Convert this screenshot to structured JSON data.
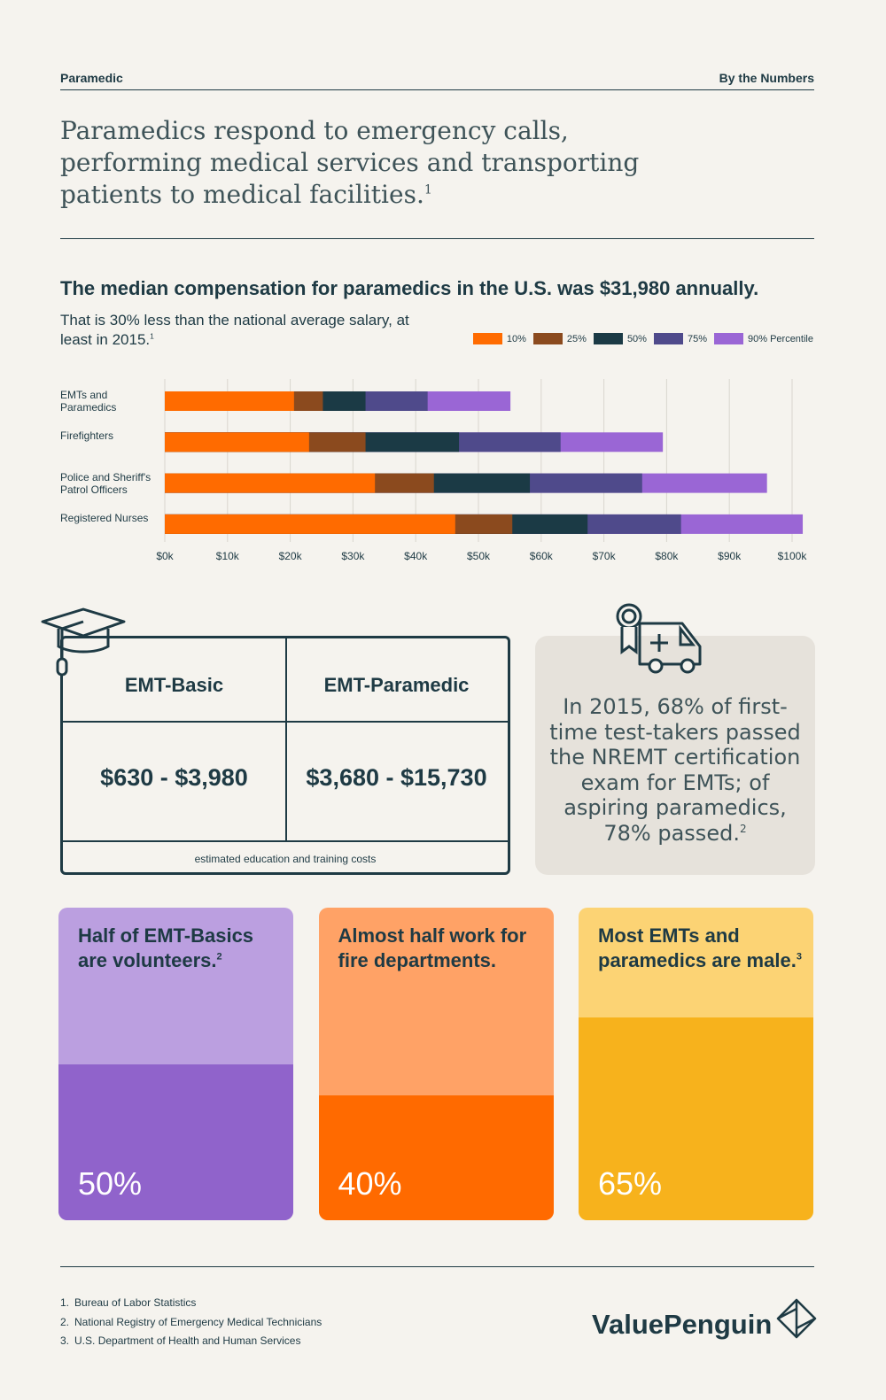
{
  "header": {
    "left": "Paramedic",
    "right": "By the Numbers"
  },
  "intro": {
    "text": "Paramedics respond to emergency calls, performing medical services and transporting patients to medical facilities.",
    "note": "1"
  },
  "chart_data": {
    "type": "bar",
    "orientation": "horizontal",
    "title": "The median compensation for paramedics in the U.S. was $31,980 annually.",
    "subtitle": "That is 30% less than the national average salary, at least in 2015.",
    "subtitle_note": "1",
    "categories": [
      "EMTs and Paramedics",
      "Firefighters",
      "Police and Sheriff's Patrol Officers",
      "Registered Nurses"
    ],
    "series": [
      {
        "name": "10%",
        "color": "#ff6b00",
        "values": [
          20.6,
          23.0,
          33.5,
          46.3
        ]
      },
      {
        "name": "25%",
        "color": "#8b4a1e",
        "values": [
          25.2,
          32.0,
          42.9,
          55.4
        ]
      },
      {
        "name": "50%",
        "color": "#1b3a45",
        "values": [
          32.0,
          46.9,
          58.2,
          67.4
        ]
      },
      {
        "name": "75%",
        "color": "#4f4a8b",
        "values": [
          41.9,
          63.1,
          76.1,
          82.3
        ]
      },
      {
        "name": "90% Percentile",
        "color": "#9a66d5",
        "values": [
          55.1,
          79.4,
          96.0,
          101.7
        ]
      }
    ],
    "xlim": [
      0,
      103
    ],
    "xticks": [
      {
        "value": 0,
        "label": "$0k"
      },
      {
        "value": 10,
        "label": "$10k"
      },
      {
        "value": 20,
        "label": "$20k"
      },
      {
        "value": 30,
        "label": "$30k"
      },
      {
        "value": 40,
        "label": "$40k"
      },
      {
        "value": 50,
        "label": "$50k"
      },
      {
        "value": 60,
        "label": "$60k"
      },
      {
        "value": 70,
        "label": "$70k"
      },
      {
        "value": 80,
        "label": "$80k"
      },
      {
        "value": 90,
        "label": "$90k"
      },
      {
        "value": 100,
        "label": "$100k"
      }
    ],
    "grid": true,
    "legend": "top-right"
  },
  "education": {
    "columns": [
      "EMT-Basic",
      "EMT-Paramedic"
    ],
    "costs": [
      "$630 - $3,980",
      "$3,680 - $15,730"
    ],
    "caption": "estimated education and training costs"
  },
  "exam": {
    "text": "In 2015, 68% of first-time test-takers passed the NREMT certification exam for EMTs; of aspiring paramedics, 78% passed.",
    "note": "2"
  },
  "cards": [
    {
      "text": "Half of EMT-Basics are volunteers.",
      "note": "2",
      "value": 50,
      "value_label": "50%",
      "color": "#9063cb",
      "light": "#bb9fe0"
    },
    {
      "text": "Almost half work for fire departments.",
      "note": null,
      "value": 40,
      "value_label": "40%",
      "color": "#ff6a00",
      "light": "#ffa266"
    },
    {
      "text": "Most EMTs and paramedics are male.",
      "note": "3",
      "value": 65,
      "value_label": "65%",
      "color": "#f7b21c",
      "light": "#fcd374"
    }
  ],
  "footnotes": [
    {
      "number": "1.",
      "text": "Bureau of Labor Statistics"
    },
    {
      "number": "2.",
      "text": "National Registry of Emergency Medical Technicians"
    },
    {
      "number": "3.",
      "text": "U.S. Department of Health and Human Services"
    }
  ],
  "brand": "ValuePenguin"
}
